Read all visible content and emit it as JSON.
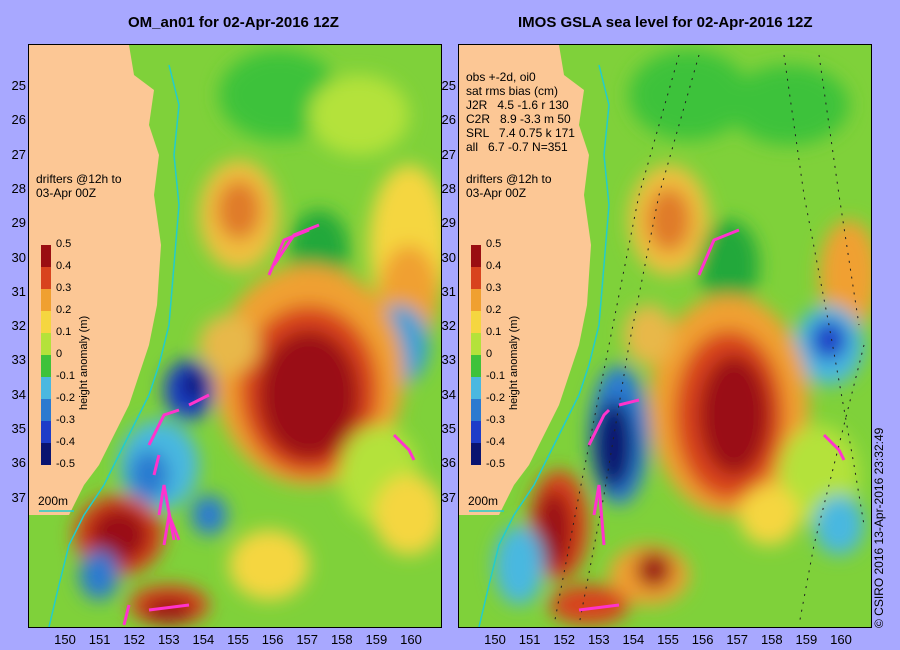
{
  "panels": [
    {
      "title": "OM_an01 for 02-Apr-2016 12Z",
      "drifter_note_1": "drifters @12h to",
      "drifter_note_2": "03-Apr 00Z",
      "depth_label": "200m",
      "colorbar_title": "height anomaly (m)",
      "colorbar_ticks": [
        "0.5",
        "0.4",
        "0.3",
        "0.2",
        "0.1",
        "0",
        "-0.1",
        "-0.2",
        "-0.3",
        "-0.4",
        "-0.5"
      ]
    },
    {
      "title": "IMOS GSLA sea level  for 02-Apr-2016 12Z",
      "stats_line_1": "obs +-2d, oi0",
      "stats_line_2": "sat rms bias (cm)",
      "stats_line_3": "J2R   4.5 -1.6 r 130",
      "stats_line_4": "C2R   8.9 -3.3 m 50",
      "stats_line_5": "SRL   7.4 0.75 k 171",
      "stats_line_6": "all   6.7 -0.7 N=351",
      "drifter_note_1": "drifters @12h to",
      "drifter_note_2": "03-Apr 00Z",
      "depth_label": "200m",
      "colorbar_title": "height anomaly (m)",
      "colorbar_ticks": [
        "0.5",
        "0.4",
        "0.3",
        "0.2",
        "0.1",
        "0",
        "-0.1",
        "-0.2",
        "-0.3",
        "-0.4",
        "-0.5"
      ]
    }
  ],
  "lat_ticks": [
    "25",
    "26",
    "27",
    "28",
    "29",
    "30",
    "31",
    "32",
    "33",
    "34",
    "35",
    "36",
    "37"
  ],
  "lon_ticks": [
    "150",
    "151",
    "152",
    "153",
    "154",
    "155",
    "156",
    "157",
    "158",
    "159",
    "160"
  ],
  "watermark": "© CSIRO 2016   13-Apr-2016 23:32:49",
  "colors": {
    "background": "#a8a8ff",
    "land": "#fcc795",
    "drifter": "#ff33cc",
    "isobath": "#22cccc"
  }
}
